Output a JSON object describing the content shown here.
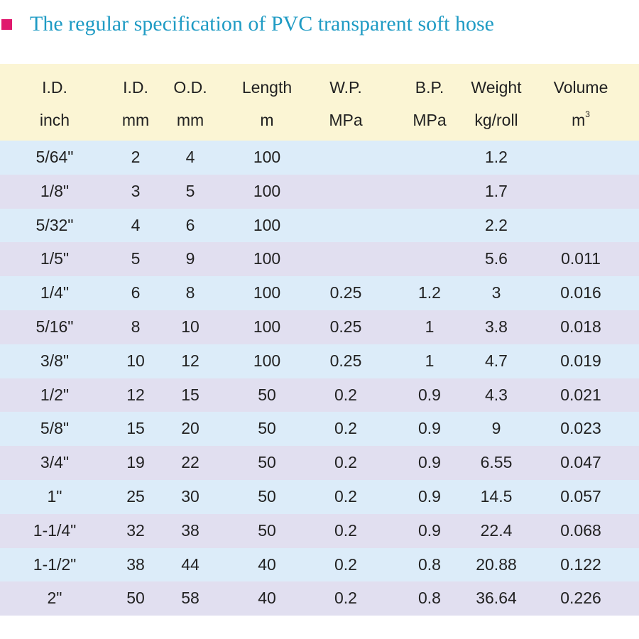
{
  "title": "The regular specification of PVC transparent soft hose",
  "header": [
    {
      "l1": "I.D.",
      "l2": "inch"
    },
    {
      "l1": "I.D.",
      "l2": "mm"
    },
    {
      "l1": "O.D.",
      "l2": "mm"
    },
    {
      "l1": "Length",
      "l2": "m"
    },
    {
      "l1": "W.P.",
      "l2": "MPa"
    },
    {
      "l1": "B.P.",
      "l2": "MPa"
    },
    {
      "l1": "Weight",
      "l2": "kg/roll"
    },
    {
      "l1": "Volume",
      "l2": "m",
      "l2_sup": "3"
    }
  ],
  "rows": [
    [
      "5/64\"",
      "2",
      "4",
      "100",
      "",
      "",
      "1.2",
      ""
    ],
    [
      "1/8\"",
      "3",
      "5",
      "100",
      "",
      "",
      "1.7",
      ""
    ],
    [
      "5/32\"",
      "4",
      "6",
      "100",
      "",
      "",
      "2.2",
      ""
    ],
    [
      "1/5\"",
      "5",
      "9",
      "100",
      "",
      "",
      "5.6",
      "0.011"
    ],
    [
      "1/4\"",
      "6",
      "8",
      "100",
      "0.25",
      "1.2",
      "3",
      "0.016"
    ],
    [
      "5/16\"",
      "8",
      "10",
      "100",
      "0.25",
      "1",
      "3.8",
      "0.018"
    ],
    [
      "3/8\"",
      "10",
      "12",
      "100",
      "0.25",
      "1",
      "4.7",
      "0.019"
    ],
    [
      "1/2\"",
      "12",
      "15",
      "50",
      "0.2",
      "0.9",
      "4.3",
      "0.021"
    ],
    [
      "5/8\"",
      "15",
      "20",
      "50",
      "0.2",
      "0.9",
      "9",
      "0.023"
    ],
    [
      "3/4\"",
      "19",
      "22",
      "50",
      "0.2",
      "0.9",
      "6.55",
      "0.047"
    ],
    [
      "1\"",
      "25",
      "30",
      "50",
      "0.2",
      "0.9",
      "14.5",
      "0.057"
    ],
    [
      "1-1/4\"",
      "32",
      "38",
      "50",
      "0.2",
      "0.9",
      "22.4",
      "0.068"
    ],
    [
      "1-1/2\"",
      "38",
      "44",
      "40",
      "0.2",
      "0.8",
      "20.88",
      "0.122"
    ],
    [
      "2\"",
      "50",
      "58",
      "40",
      "0.2",
      "0.8",
      "36.64",
      "0.226"
    ]
  ],
  "colors": {
    "title": "#1f9bc4",
    "bullet": "#e0196e",
    "header_bg": "#fbf5d4",
    "row_blue": "#dcecf9",
    "row_lavender": "#e1dff0"
  }
}
